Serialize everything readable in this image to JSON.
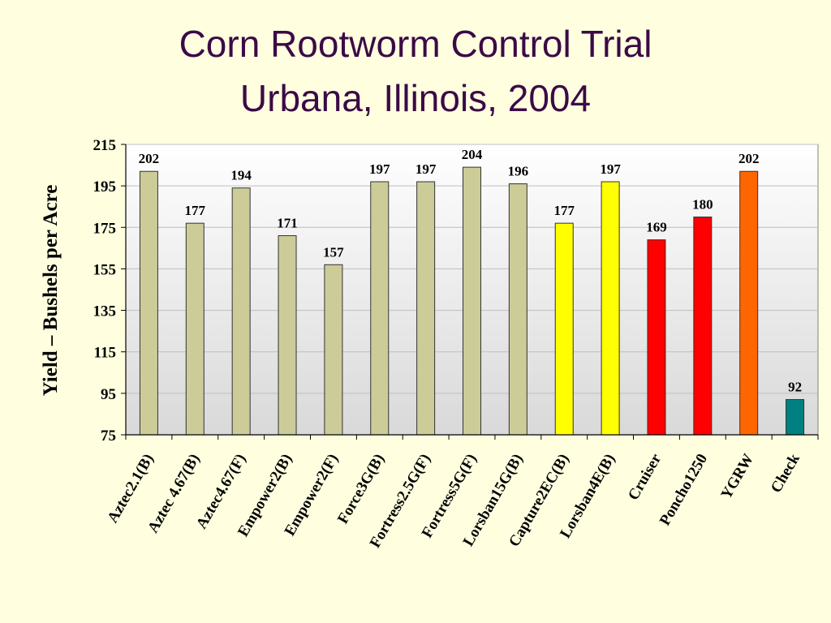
{
  "title": {
    "line1": "Corn Rootworm Control Trial",
    "line2": "Urbana, Illinois, 2004"
  },
  "colors": {
    "background": "#ffffe0",
    "title": "#3c0a46",
    "plot_area_top": "#ffffff",
    "plot_area_bottom": "#d9d9d9",
    "grid": "#bfbfbf"
  },
  "chart_data": {
    "type": "bar",
    "ylabel": "Yield – Bushels per Acre",
    "xlabel": "",
    "ylim": [
      75,
      215
    ],
    "yticks": [
      75,
      95,
      115,
      135,
      155,
      175,
      195,
      215
    ],
    "grid": true,
    "categories": [
      "Aztec2.1(B)",
      "Aztec 4.67(B)",
      "Aztec4.67(F)",
      "Empower2(B)",
      "Empower2(F)",
      "Force3G(B)",
      "Fortress2.5G(F)",
      "Fortress5G(F)",
      "Lorsban15G(B)",
      "Capture2EC(B)",
      "Lorsban4E(B)",
      "Cruiser",
      "Poncho1250",
      "YGRW",
      "Check"
    ],
    "values": [
      202,
      177,
      194,
      171,
      157,
      197,
      197,
      204,
      196,
      177,
      197,
      169,
      180,
      202,
      92
    ],
    "value_labels": [
      "202",
      "177",
      "194",
      "171",
      "157",
      "197",
      "197",
      "204",
      "196",
      "177",
      "197",
      "169",
      "180",
      "202",
      "92"
    ],
    "bar_colors": [
      "#cccc99",
      "#cccc99",
      "#cccc99",
      "#cccc99",
      "#cccc99",
      "#cccc99",
      "#cccc99",
      "#cccc99",
      "#cccc99",
      "#ffff00",
      "#ffff00",
      "#ff0000",
      "#ff0000",
      "#ff6600",
      "#008080"
    ]
  }
}
